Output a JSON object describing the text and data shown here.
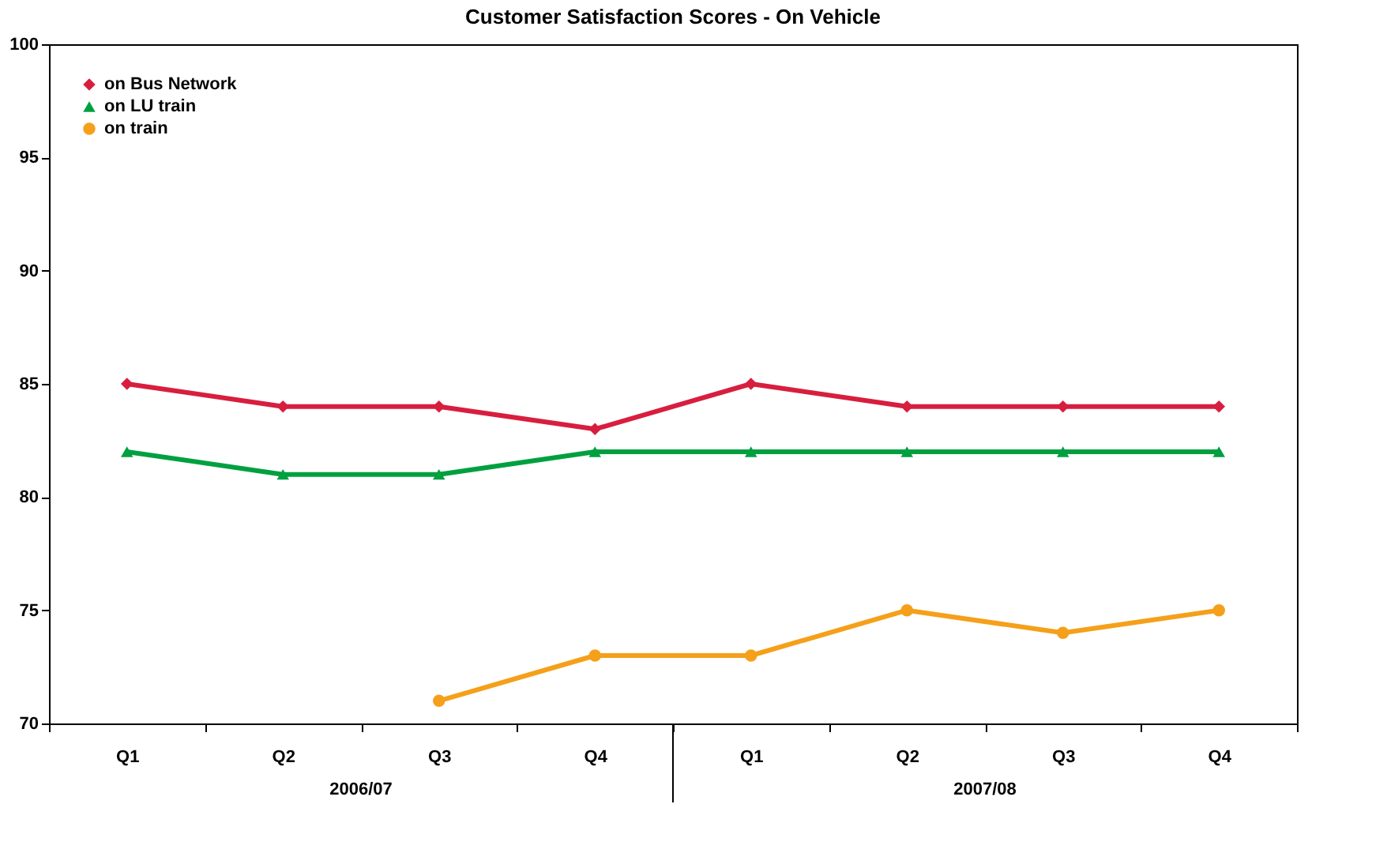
{
  "chart_data": {
    "type": "line",
    "title": "Customer Satisfaction Scores - On Vehicle",
    "categories": [
      "Q1",
      "Q2",
      "Q3",
      "Q4",
      "Q1",
      "Q2",
      "Q3",
      "Q4"
    ],
    "series": [
      {
        "name": "on Bus Network",
        "color": "#d81e3e",
        "marker": "diamond",
        "values": [
          85,
          84,
          84,
          83,
          85,
          84,
          84,
          84
        ]
      },
      {
        "name": "on LU train",
        "color": "#00a040",
        "marker": "triangle",
        "values": [
          82,
          81,
          81,
          82,
          82,
          82,
          82,
          82
        ]
      },
      {
        "name": "on train",
        "color": "#f5a01a",
        "marker": "circle",
        "values": [
          null,
          null,
          71,
          73,
          73,
          75,
          74,
          75
        ]
      }
    ],
    "annotations": [
      "2006/07",
      "2007/08"
    ],
    "ylim": [
      70,
      100
    ],
    "yticks": [
      70,
      75,
      80,
      85,
      90,
      95,
      100
    ],
    "grid": false,
    "legend": "top left",
    "line_style": "solid"
  }
}
